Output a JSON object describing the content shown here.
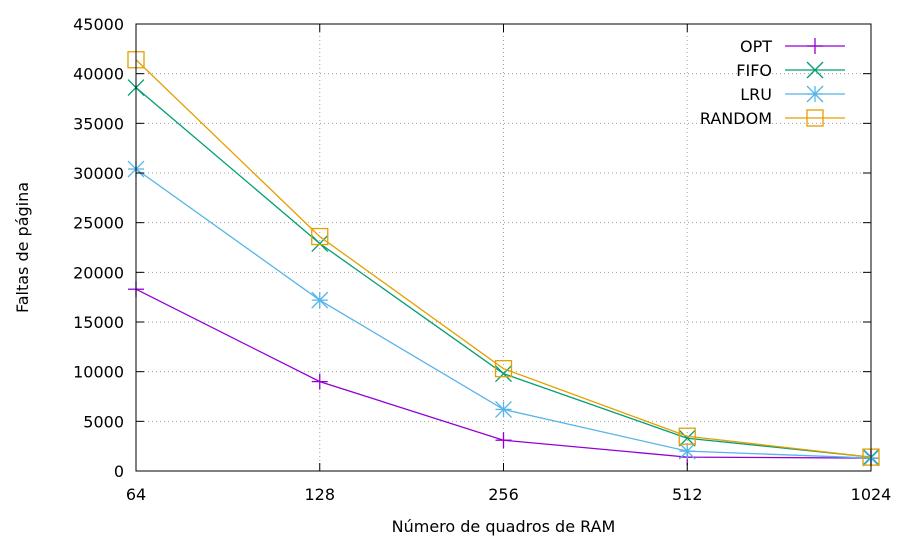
{
  "chart_data": {
    "type": "line",
    "x_scale": "log2",
    "categories": [
      "64",
      "128",
      "256",
      "512",
      "1024"
    ],
    "x": [
      64,
      128,
      256,
      512,
      1024
    ],
    "xlabel": "Número de quadros de RAM",
    "ylabel": "Faltas de página",
    "ylim": [
      0,
      45000
    ],
    "yticks": [
      0,
      5000,
      10000,
      15000,
      20000,
      25000,
      30000,
      35000,
      40000,
      45000
    ],
    "grid": true,
    "legend_position": "top-right",
    "series": [
      {
        "name": "OPT",
        "color": "#9400d3",
        "marker": "plus",
        "values": [
          18300,
          9000,
          3100,
          1400,
          1300
        ]
      },
      {
        "name": "FIFO",
        "color": "#009e73",
        "marker": "cross",
        "values": [
          38600,
          22900,
          9800,
          3300,
          1400
        ]
      },
      {
        "name": "LRU",
        "color": "#56b4e9",
        "marker": "star",
        "values": [
          30400,
          17200,
          6200,
          2000,
          1300
        ]
      },
      {
        "name": "RANDOM",
        "color": "#e69f00",
        "marker": "square",
        "values": [
          41400,
          23600,
          10300,
          3500,
          1400
        ]
      }
    ]
  }
}
